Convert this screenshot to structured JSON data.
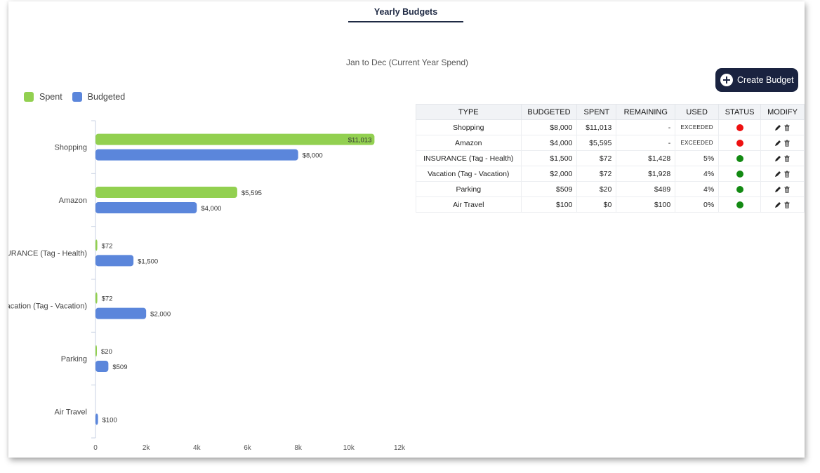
{
  "header": {
    "tab_title": "Yearly Budgets",
    "subtitle": "Jan to Dec (Current Year Spend)"
  },
  "actions": {
    "create_budget_label": "Create Budget",
    "create_budget_icon": "plus-circle-icon"
  },
  "legend": [
    {
      "label": "Spent",
      "color": "#92d050"
    },
    {
      "label": "Budgeted",
      "color": "#5b86db"
    }
  ],
  "chart_data": {
    "type": "bar",
    "orientation": "horizontal",
    "categories": [
      "Shopping",
      "Amazon",
      "INSURANCE (Tag - Health)",
      "Vacation (Tag - Vacation)",
      "Parking",
      "Air Travel"
    ],
    "series": [
      {
        "name": "Spent",
        "color": "#92d050",
        "values": [
          11013,
          5595,
          72,
          72,
          20,
          0
        ],
        "labels": [
          "$11,013",
          "$5,595",
          "$72",
          "$72",
          "$20",
          ""
        ]
      },
      {
        "name": "Budgeted",
        "color": "#5b86db",
        "values": [
          8000,
          4000,
          1500,
          2000,
          509,
          100
        ],
        "labels": [
          "$8,000",
          "$4,000",
          "$1,500",
          "$2,000",
          "$509",
          "$100"
        ]
      }
    ],
    "xlim": [
      0,
      12000
    ],
    "x_ticks": [
      0,
      2000,
      4000,
      6000,
      8000,
      10000,
      12000
    ],
    "x_tick_labels": [
      "0",
      "2k",
      "4k",
      "6k",
      "8k",
      "10k",
      "12k"
    ],
    "legend_position": "top-left",
    "grid": false
  },
  "table": {
    "columns": [
      "TYPE",
      "BUDGETED",
      "SPENT",
      "REMAINING",
      "USED",
      "STATUS",
      "MODIFY"
    ],
    "rows": [
      {
        "type": "Shopping",
        "budgeted": "$8,000",
        "spent": "$11,013",
        "remaining": "-",
        "used": "EXCEEDED",
        "status_color": "#ee1111"
      },
      {
        "type": "Amazon",
        "budgeted": "$4,000",
        "spent": "$5,595",
        "remaining": "-",
        "used": "EXCEEDED",
        "status_color": "#ee1111"
      },
      {
        "type": "INSURANCE (Tag - Health)",
        "budgeted": "$1,500",
        "spent": "$72",
        "remaining": "$1,428",
        "used": "5%",
        "status_color": "#138a13"
      },
      {
        "type": "Vacation (Tag - Vacation)",
        "budgeted": "$2,000",
        "spent": "$72",
        "remaining": "$1,928",
        "used": "4%",
        "status_color": "#138a13"
      },
      {
        "type": "Parking",
        "budgeted": "$509",
        "spent": "$20",
        "remaining": "$489",
        "used": "4%",
        "status_color": "#138a13"
      },
      {
        "type": "Air Travel",
        "budgeted": "$100",
        "spent": "$0",
        "remaining": "$100",
        "used": "0%",
        "status_color": "#138a13"
      }
    ],
    "modify_icons": [
      "pencil-icon",
      "trash-icon"
    ]
  }
}
